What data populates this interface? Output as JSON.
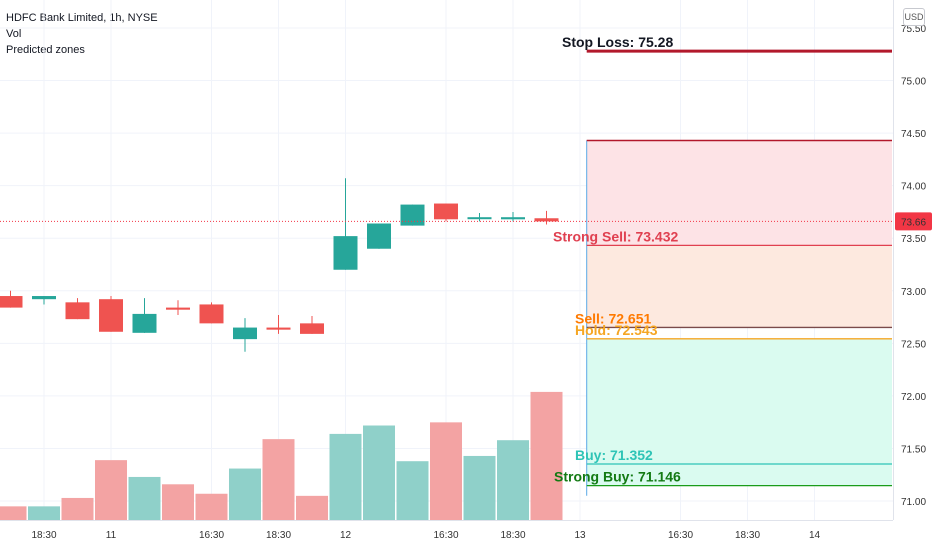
{
  "legend": {
    "title": "HDFC Bank Limited, 1h, NYSE",
    "vol": "Vol",
    "zones": "Predicted zones"
  },
  "currency_badge": "USD",
  "chart_data": {
    "type": "candlestick",
    "y_ticks": [
      "71.00",
      "71.50",
      "72.00",
      "72.50",
      "73.00",
      "73.50",
      "74.00",
      "74.50",
      "75.00",
      "75.50"
    ],
    "ylim": [
      70.9,
      75.55
    ],
    "x_ticks": [
      {
        "label": "18:30",
        "slot": 1.0
      },
      {
        "label": "11",
        "slot": 3.0
      },
      {
        "label": "16:30",
        "slot": 6.0
      },
      {
        "label": "18:30",
        "slot": 8.0
      },
      {
        "label": "12",
        "slot": 10.0
      },
      {
        "label": "16:30",
        "slot": 13.0
      },
      {
        "label": "18:30",
        "slot": 15.0
      },
      {
        "label": "13",
        "slot": 17.0
      },
      {
        "label": "16:30",
        "slot": 20.0
      },
      {
        "label": "18:30",
        "slot": 22.0
      },
      {
        "label": "14",
        "slot": 24.0
      }
    ],
    "last_price": {
      "label": "73.66",
      "value": 73.66,
      "color": "#f23645"
    },
    "candles": [
      {
        "o": 72.95,
        "h": 73.0,
        "l": 72.84,
        "c": 72.84
      },
      {
        "o": 72.92,
        "h": 72.95,
        "l": 72.87,
        "c": 72.95
      },
      {
        "o": 72.89,
        "h": 72.93,
        "l": 72.73,
        "c": 72.73
      },
      {
        "o": 72.92,
        "h": 72.95,
        "l": 72.61,
        "c": 72.61
      },
      {
        "o": 72.6,
        "h": 72.93,
        "l": 72.6,
        "c": 72.78
      },
      {
        "o": 72.84,
        "h": 72.91,
        "l": 72.77,
        "c": 72.82
      },
      {
        "o": 72.87,
        "h": 72.89,
        "l": 72.69,
        "c": 72.69
      },
      {
        "o": 72.54,
        "h": 72.74,
        "l": 72.42,
        "c": 72.65
      },
      {
        "o": 72.65,
        "h": 72.77,
        "l": 72.59,
        "c": 72.63
      },
      {
        "o": 72.69,
        "h": 72.76,
        "l": 72.59,
        "c": 72.59
      },
      {
        "o": 73.2,
        "h": 74.07,
        "l": 73.2,
        "c": 73.52
      },
      {
        "o": 73.4,
        "h": 73.64,
        "l": 73.4,
        "c": 73.64
      },
      {
        "o": 73.62,
        "h": 73.82,
        "l": 73.62,
        "c": 73.82
      },
      {
        "o": 73.83,
        "h": 73.83,
        "l": 73.66,
        "c": 73.68
      },
      {
        "o": 73.69,
        "h": 73.74,
        "l": 73.66,
        "c": 73.7
      },
      {
        "o": 73.68,
        "h": 73.75,
        "l": 73.66,
        "c": 73.7
      },
      {
        "o": 73.69,
        "h": 73.76,
        "l": 73.63,
        "c": 73.66
      }
    ],
    "volume_rel": [
      0.13,
      0.13,
      0.21,
      0.57,
      0.41,
      0.34,
      0.25,
      0.49,
      0.77,
      0.23,
      0.82,
      0.9,
      0.56,
      0.93,
      0.61,
      0.76,
      1.22
    ],
    "colors": {
      "up": "#26a69a",
      "down": "#ef5350",
      "vol_up": "#8fd0c9",
      "vol_down": "#f3a3a3",
      "grid": "#f0f3fa",
      "axis_text": "#333333"
    },
    "zones": [
      {
        "label": "Stop Loss: 75.28",
        "value": 75.28,
        "color": "#b2182b",
        "text_color": "#131722"
      },
      {
        "label": "Strong Sell: 73.432",
        "value": 73.432,
        "color": "#e04050",
        "text_color": "#e04050"
      },
      {
        "label": "Sell: 72.651",
        "value": 72.651,
        "color": "#7a4a4a",
        "text_color": "#ff7a00"
      },
      {
        "label": "Hold: 72.543",
        "value": 72.543,
        "color": "#f5a623",
        "text_color": "#f5a623"
      },
      {
        "label": "Buy: 71.352",
        "value": 71.352,
        "color": "#2ec4b6",
        "text_color": "#2ec4b6"
      },
      {
        "label": "Strong Buy: 71.146",
        "value": 71.146,
        "color": "#1a9c1a",
        "text_color": "#137a13"
      }
    ],
    "zone_bands": [
      {
        "from": 73.432,
        "to": 74.43,
        "color": "#fde3e6"
      },
      {
        "from": 72.651,
        "to": 73.432,
        "color": "#fde9df"
      },
      {
        "from": 71.146,
        "to": 72.543,
        "color": "#dafbf0"
      }
    ],
    "zone_box_top": 74.43
  }
}
